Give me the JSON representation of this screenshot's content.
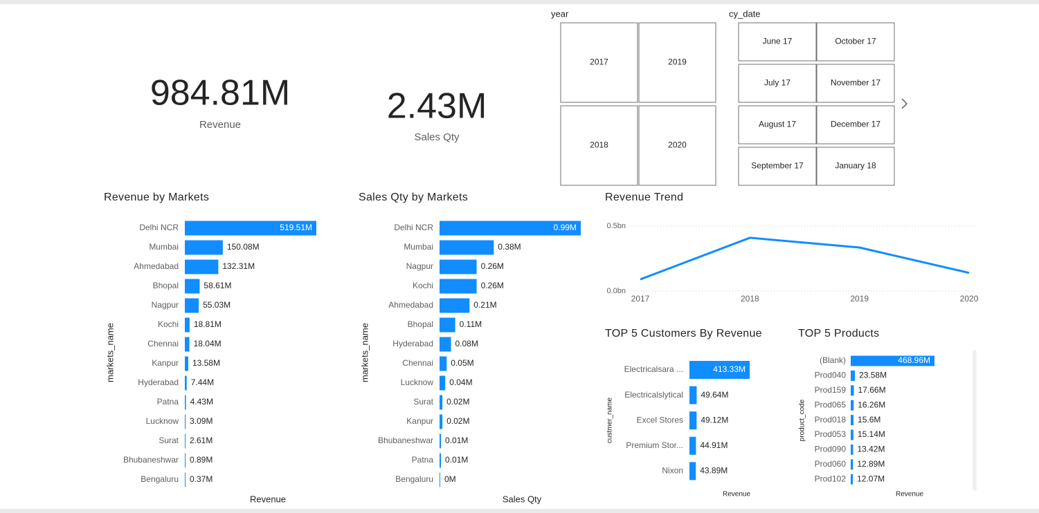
{
  "cards": [
    {
      "value": "984.81M",
      "label": "Revenue"
    },
    {
      "value": "2.43M",
      "label": "Sales Qty"
    }
  ],
  "slicers": [
    {
      "title": "year",
      "items": [
        "2017",
        "2019",
        "2018",
        "2020"
      ]
    },
    {
      "title": "cy_date",
      "items": [
        "June 17",
        "October 17",
        "July 17",
        "November 17",
        "August 17",
        "December 17",
        "September 17",
        "January 18"
      ]
    }
  ],
  "chart_data": [
    {
      "type": "hbar",
      "title": "Revenue by Markets",
      "y_label": "markets_name",
      "x_label": "Revenue",
      "color": "#118dff",
      "categories": [
        "Delhi NCR",
        "Mumbai",
        "Ahmedabad",
        "Bhopal",
        "Nagpur",
        "Kochi",
        "Chennai",
        "Kanpur",
        "Hyderabad",
        "Patna",
        "Lucknow",
        "Surat",
        "Bhubaneshwar",
        "Bengaluru"
      ],
      "values": [
        519.51,
        150.08,
        132.31,
        58.61,
        55.03,
        18.81,
        18.04,
        13.58,
        7.44,
        4.43,
        3.09,
        2.61,
        0.89,
        0.37
      ],
      "value_labels": [
        "519.51M",
        "150.08M",
        "132.31M",
        "58.61M",
        "55.03M",
        "18.81M",
        "18.04M",
        "13.58M",
        "7.44M",
        "4.43M",
        "3.09M",
        "2.61M",
        "0.89M",
        "0.37M"
      ]
    },
    {
      "type": "hbar",
      "title": "Sales Qty by Markets",
      "y_label": "markets_name",
      "x_label": "Sales Qty",
      "color": "#118dff",
      "categories": [
        "Delhi NCR",
        "Mumbai",
        "Nagpur",
        "Kochi",
        "Ahmedabad",
        "Bhopal",
        "Hyderabad",
        "Chennai",
        "Lucknow",
        "Surat",
        "Kanpur",
        "Bhubaneshwar",
        "Patna",
        "Bengaluru"
      ],
      "values": [
        0.99,
        0.38,
        0.26,
        0.26,
        0.21,
        0.11,
        0.08,
        0.05,
        0.04,
        0.02,
        0.02,
        0.01,
        0.01,
        0
      ],
      "value_labels": [
        "0.99M",
        "0.38M",
        "0.26M",
        "0.26M",
        "0.21M",
        "0.11M",
        "0.08M",
        "0.05M",
        "0.04M",
        "0.02M",
        "0.02M",
        "0.01M",
        "0.01M",
        "0M"
      ]
    },
    {
      "type": "line",
      "title": "Revenue Trend",
      "color": "#118dff",
      "x": [
        2017,
        2018,
        2019,
        2020
      ],
      "xlim": [
        2017,
        2020
      ],
      "xticks": [
        2017,
        2018,
        2019,
        2020
      ],
      "values": [
        0.09,
        0.41,
        0.335,
        0.14
      ],
      "ylim": [
        0,
        0.5
      ],
      "yticks": [
        {
          "value": 0,
          "label": "0.0bn"
        },
        {
          "value": 0.5,
          "label": "0.5bn"
        }
      ],
      "grid": true
    },
    {
      "type": "hbar",
      "title": "TOP 5 Customers By Revenue",
      "y_label": "custmer_name",
      "x_label": "Revenue",
      "color": "#118dff",
      "categories": [
        "Electricalsara ...",
        "Electricalslytical",
        "Excel Stores",
        "Premium Stor...",
        "Nixon"
      ],
      "values": [
        413.33,
        49.64,
        49.12,
        44.91,
        43.89
      ],
      "value_labels": [
        "413.33M",
        "49.64M",
        "49.12M",
        "44.91M",
        "43.89M"
      ]
    },
    {
      "type": "hbar",
      "title": "TOP 5 Products",
      "y_label": "product_code",
      "x_label": "Revenue",
      "color": "#118dff",
      "categories": [
        "(Blank)",
        "Prod040",
        "Prod159",
        "Prod065",
        "Prod018",
        "Prod053",
        "Prod090",
        "Prod060",
        "Prod102"
      ],
      "values": [
        468.96,
        23.58,
        17.66,
        16.26,
        15.6,
        15.14,
        13.42,
        12.89,
        12.07
      ],
      "value_labels": [
        "468.96M",
        "23.58M",
        "17.66M",
        "16.26M",
        "15.6M",
        "15.14M",
        "13.42M",
        "12.89M",
        "12.07M"
      ]
    }
  ]
}
